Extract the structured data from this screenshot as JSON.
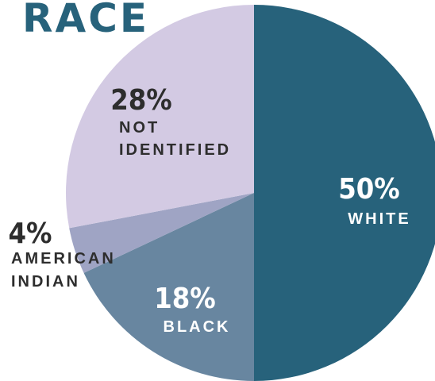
{
  "chart_data": {
    "type": "pie",
    "title": "RACE",
    "categories": [
      "WHITE",
      "BLACK",
      "AMERICAN INDIAN",
      "NOT IDENTIFIED"
    ],
    "values": [
      50,
      18,
      4,
      28
    ],
    "value_labels": [
      "50%",
      "18%",
      "4%",
      "28%"
    ],
    "colors": [
      "#27627b",
      "#6886a0",
      "#9fa4c4",
      "#d3cae3"
    ]
  }
}
